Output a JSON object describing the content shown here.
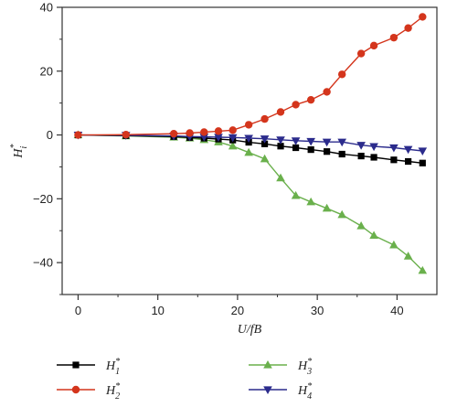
{
  "chart_data": {
    "type": "line",
    "title": "",
    "xlabel": "U/fB",
    "ylabel_base": "H",
    "ylabel_sub": "i",
    "ylabel_sup": "*",
    "xlim": [
      -2,
      45
    ],
    "ylim": [
      -50,
      40
    ],
    "xticks": [
      0,
      10,
      20,
      30,
      40
    ],
    "yticks": [
      -40,
      -20,
      0,
      20,
      40
    ],
    "grid": false,
    "legend_position": "bottom",
    "x": [
      0,
      6,
      12,
      14,
      15.8,
      17.6,
      19.4,
      21.4,
      23.4,
      25.4,
      27.3,
      29.2,
      31.2,
      33.1,
      35.5,
      37.1,
      39.6,
      41.4,
      43.2
    ],
    "series": [
      {
        "name_base": "H",
        "name_sub": "1",
        "name_sup": "*",
        "color": "#000000",
        "marker": "square",
        "values": [
          0,
          -0.2,
          -0.5,
          -0.8,
          -1.0,
          -1.3,
          -1.6,
          -2.3,
          -2.8,
          -3.5,
          -4.0,
          -4.6,
          -5.2,
          -6.0,
          -6.6,
          -7.0,
          -7.8,
          -8.3,
          -8.8
        ]
      },
      {
        "name_base": "H",
        "name_sub": "2",
        "name_sup": "*",
        "color": "#d4351c",
        "marker": "circle",
        "values": [
          0,
          0.1,
          0.4,
          0.6,
          0.9,
          1.2,
          1.5,
          3.2,
          5.0,
          7.2,
          9.5,
          11.0,
          13.5,
          19.0,
          25.5,
          28.0,
          30.5,
          33.5,
          37.0
        ]
      },
      {
        "name_base": "H",
        "name_sub": "3",
        "name_sup": "*",
        "color": "#6ab04c",
        "marker": "triangle-up",
        "values": [
          0,
          -0.3,
          -0.7,
          -1.0,
          -1.5,
          -2.2,
          -3.5,
          -5.5,
          -7.5,
          -13.5,
          -19.0,
          -21.0,
          -23.0,
          -25.0,
          -28.5,
          -31.5,
          -34.5,
          -38.0,
          -42.5
        ]
      },
      {
        "name_base": "H",
        "name_sub": "4",
        "name_sup": "*",
        "color": "#2b2b8c",
        "marker": "triangle-down",
        "values": [
          0,
          -0.1,
          -0.3,
          -0.5,
          -0.6,
          -0.7,
          -0.8,
          -1.0,
          -1.2,
          -1.5,
          -1.8,
          -2.0,
          -2.2,
          -2.2,
          -3.2,
          -3.6,
          -4.0,
          -4.5,
          -5.0
        ]
      }
    ]
  }
}
